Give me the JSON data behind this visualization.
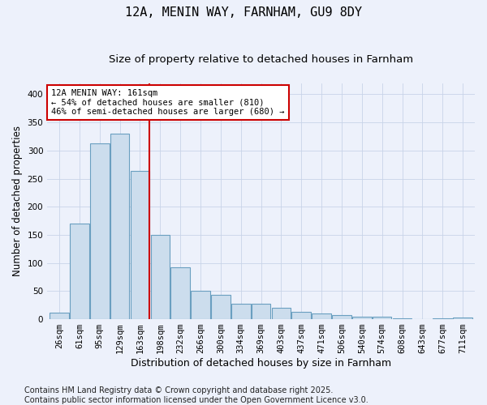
{
  "title": "12A, MENIN WAY, FARNHAM, GU9 8DY",
  "subtitle": "Size of property relative to detached houses in Farnham",
  "xlabel": "Distribution of detached houses by size in Farnham",
  "ylabel": "Number of detached properties",
  "footer_line1": "Contains HM Land Registry data © Crown copyright and database right 2025.",
  "footer_line2": "Contains public sector information licensed under the Open Government Licence v3.0.",
  "bin_labels": [
    "26sqm",
    "61sqm",
    "95sqm",
    "129sqm",
    "163sqm",
    "198sqm",
    "232sqm",
    "266sqm",
    "300sqm",
    "334sqm",
    "369sqm",
    "403sqm",
    "437sqm",
    "471sqm",
    "506sqm",
    "540sqm",
    "574sqm",
    "608sqm",
    "643sqm",
    "677sqm",
    "711sqm"
  ],
  "bar_values": [
    12,
    170,
    312,
    330,
    263,
    150,
    93,
    50,
    44,
    27,
    27,
    20,
    13,
    10,
    7,
    4,
    4,
    1,
    0,
    1,
    3
  ],
  "bar_color": "#ccdded",
  "bar_edge_color": "#6a9fc0",
  "red_line_bin": 4,
  "annotation_text": "12A MENIN WAY: 161sqm\n← 54% of detached houses are smaller (810)\n46% of semi-detached houses are larger (680) →",
  "annotation_box_facecolor": "white",
  "annotation_box_edgecolor": "#cc0000",
  "ylim": [
    0,
    420
  ],
  "yticks": [
    0,
    50,
    100,
    150,
    200,
    250,
    300,
    350,
    400
  ],
  "grid_color": "#c8d4e8",
  "background_color": "#edf1fb",
  "title_fontsize": 11,
  "subtitle_fontsize": 9.5,
  "annotation_fontsize": 7.5,
  "ylabel_fontsize": 8.5,
  "xlabel_fontsize": 9,
  "tick_fontsize": 7.5,
  "footer_fontsize": 7
}
